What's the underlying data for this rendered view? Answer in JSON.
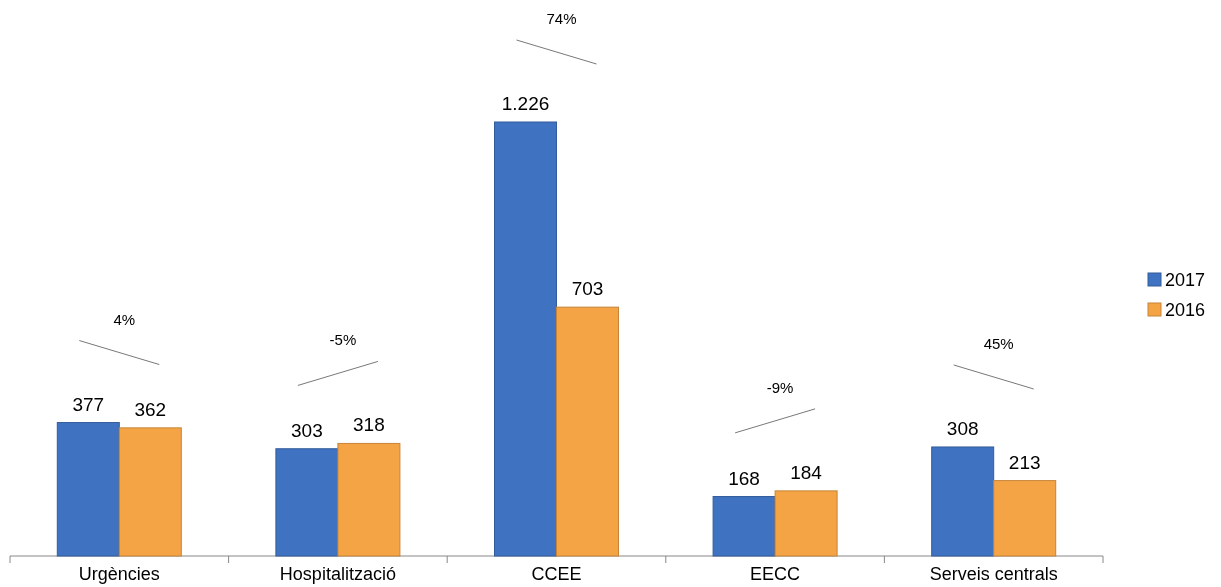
{
  "chart_data": {
    "type": "bar",
    "categories": [
      "Urgències",
      "Hospitalització",
      "CCEE",
      "EECC",
      "Serveis centrals"
    ],
    "series": [
      {
        "name": "2017",
        "color": "#3f72c0",
        "values": [
          377,
          303,
          1226,
          168,
          308
        ],
        "value_labels": [
          "377",
          "303",
          "1.226",
          "168",
          "308"
        ]
      },
      {
        "name": "2016",
        "color": "#f5a445",
        "values": [
          362,
          318,
          703,
          184,
          213
        ],
        "value_labels": [
          "362",
          "318",
          "703",
          "184",
          "213"
        ]
      }
    ],
    "annotations": [
      "4%",
      "-5%",
      "74%",
      "-9%",
      "45%"
    ],
    "legend": "right"
  }
}
